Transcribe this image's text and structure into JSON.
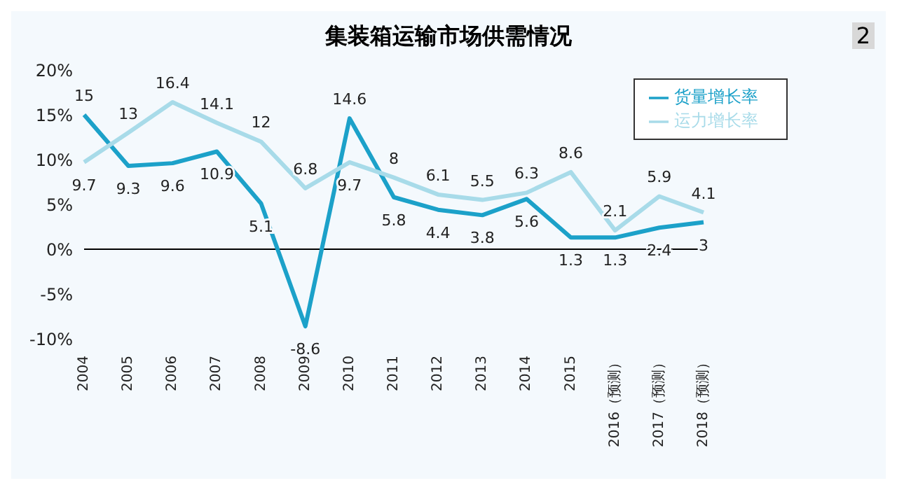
{
  "chart_data": {
    "type": "line",
    "title": "集装箱运输市场供需情况",
    "annotations": [
      "2"
    ],
    "categories": [
      "2004",
      "2005",
      "2006",
      "2007",
      "2008",
      "2009",
      "2010",
      "2011",
      "2012",
      "2013",
      "2014",
      "2015",
      "2016（预测）",
      "2017（预测）",
      "2018（预测）"
    ],
    "series": [
      {
        "name": "货量增长率",
        "color": "#1ca1c9",
        "values": [
          15,
          9.3,
          9.6,
          10.9,
          5.1,
          -8.6,
          14.6,
          5.8,
          4.4,
          3.8,
          5.6,
          1.3,
          1.3,
          2.4,
          3
        ]
      },
      {
        "name": "运力增长率",
        "color": "#a8dbe9",
        "values": [
          9.7,
          13,
          16.4,
          14.1,
          12,
          6.8,
          9.7,
          8,
          6.1,
          5.5,
          6.3,
          8.6,
          2.1,
          5.9,
          4.1
        ]
      }
    ],
    "ylim": [
      -10,
      20
    ],
    "yticks": [
      {
        "value": -10,
        "label": "-10%"
      },
      {
        "value": -5,
        "label": "-5%"
      },
      {
        "value": 0,
        "label": "0%"
      },
      {
        "value": 5,
        "label": "5%"
      },
      {
        "value": 10,
        "label": "10%"
      },
      {
        "value": 15,
        "label": "15%"
      },
      {
        "value": 20,
        "label": "20%"
      }
    ],
    "ref_lines": [
      {
        "axis": "y",
        "value": 0,
        "color": "#000000"
      }
    ],
    "grid": false,
    "legend": "top right",
    "marker": "none",
    "line_style": "solid",
    "data_labels": true
  }
}
